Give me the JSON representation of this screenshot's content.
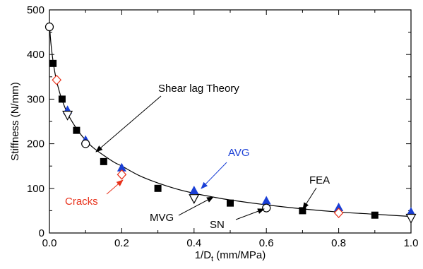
{
  "chart_data": {
    "type": "scatter",
    "xlabel_main": "1/D",
    "xlabel_sub": "t",
    "xlabel_rest": " (mm/MPa)",
    "ylabel": "Stiffness (N/mm)",
    "xlim": [
      0.0,
      1.0
    ],
    "ylim": [
      0,
      500
    ],
    "xticks": [
      0.0,
      0.2,
      0.4,
      0.6,
      0.8,
      1.0
    ],
    "xtick_labels": [
      "0.0",
      "0.2",
      "0.4",
      "0.6",
      "0.8",
      "1.0"
    ],
    "yticks": [
      0,
      100,
      200,
      300,
      400,
      500
    ],
    "ytick_labels": [
      "0",
      "100",
      "200",
      "300",
      "400",
      "500"
    ],
    "grid": false,
    "series": [
      {
        "name": "FEA",
        "marker": "square",
        "color": "#000000",
        "x": [
          0.01,
          0.035,
          0.075,
          0.15,
          0.3,
          0.5,
          0.7,
          0.9
        ],
        "y": [
          380,
          300,
          230,
          160,
          100,
          67,
          50,
          40
        ]
      },
      {
        "name": "AVG",
        "marker": "triangle-up",
        "color": "#1a3fd6",
        "x": [
          0.05,
          0.1,
          0.2,
          0.4,
          0.6,
          0.8,
          1.0
        ],
        "y": [
          275,
          208,
          146,
          95,
          72,
          57,
          47
        ]
      },
      {
        "name": "Cracks",
        "marker": "diamond-open",
        "color": "#e8311a",
        "x": [
          0.02,
          0.2,
          0.8
        ],
        "y": [
          343,
          131,
          45
        ]
      },
      {
        "name": "MVG",
        "marker": "triangle-down-open",
        "color": "#000000",
        "x": [
          0.05,
          0.4,
          1.0
        ],
        "y": [
          265,
          78,
          34
        ]
      },
      {
        "name": "SN",
        "marker": "circle-open",
        "color": "#000000",
        "x": [
          0.0,
          0.1,
          0.6
        ],
        "y": [
          462,
          200,
          56
        ]
      }
    ],
    "curve": {
      "name": "Shear lag Theory",
      "x": [
        0.0,
        0.0025,
        0.005,
        0.01,
        0.015,
        0.02,
        0.03,
        0.04,
        0.05,
        0.06,
        0.08,
        0.1,
        0.12,
        0.15,
        0.18,
        0.2,
        0.25,
        0.3,
        0.35,
        0.4,
        0.45,
        0.5,
        0.6,
        0.7,
        0.8,
        0.9,
        1.0
      ],
      "y": [
        470,
        440,
        418,
        385,
        360,
        340,
        310,
        287,
        268,
        253,
        228,
        208,
        192,
        174,
        158,
        150,
        128,
        112,
        99,
        89,
        81,
        74,
        63,
        54,
        47,
        42,
        37
      ]
    },
    "annotations": [
      {
        "label": "Shear lag Theory",
        "color": "#000000"
      },
      {
        "label": "AVG",
        "color": "#1a3fd6"
      },
      {
        "label": "FEA",
        "color": "#000000"
      },
      {
        "label": "Cracks",
        "color": "#e8311a"
      },
      {
        "label": "MVG",
        "color": "#000000"
      },
      {
        "label": "SN",
        "color": "#000000"
      }
    ]
  }
}
